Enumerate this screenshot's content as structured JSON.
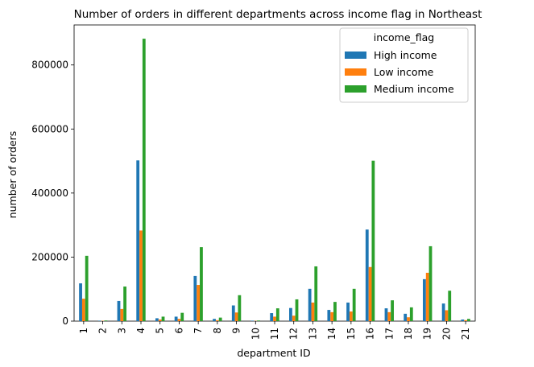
{
  "chart_data": {
    "type": "bar",
    "title": "Number of orders in different departments across income flag in Northeast",
    "xlabel": "department ID",
    "ylabel": "number of orders",
    "ylim": [
      0,
      925000
    ],
    "yticks": [
      0,
      200000,
      400000,
      600000,
      800000
    ],
    "ytick_labels": [
      "0",
      "200000",
      "400000",
      "600000",
      "800000"
    ],
    "categories": [
      "1",
      "2",
      "3",
      "4",
      "5",
      "6",
      "7",
      "8",
      "9",
      "10",
      "11",
      "12",
      "13",
      "14",
      "15",
      "16",
      "17",
      "18",
      "19",
      "20",
      "21"
    ],
    "legend": {
      "title": "income_flag",
      "position": "top-right"
    },
    "grid": false,
    "series": [
      {
        "name": "High income",
        "color": "#1f77b4",
        "values": [
          118000,
          1500,
          63000,
          502000,
          9000,
          14000,
          141000,
          7000,
          49000,
          1500,
          25000,
          41000,
          101000,
          35000,
          58000,
          286000,
          40000,
          23000,
          131000,
          55000,
          5000
        ]
      },
      {
        "name": "Low income",
        "color": "#ff7f0e",
        "values": [
          70000,
          1000,
          38000,
          283000,
          5000,
          7000,
          113000,
          3000,
          27000,
          800,
          14000,
          17000,
          58000,
          28000,
          30000,
          169000,
          28000,
          12000,
          151000,
          34000,
          3000
        ]
      },
      {
        "name": "Medium income",
        "color": "#2ca02c",
        "values": [
          204000,
          2000,
          108000,
          882000,
          14000,
          26000,
          231000,
          11000,
          81000,
          2000,
          40000,
          68000,
          171000,
          60000,
          101000,
          501000,
          65000,
          43000,
          234000,
          95000,
          7000
        ]
      }
    ]
  }
}
